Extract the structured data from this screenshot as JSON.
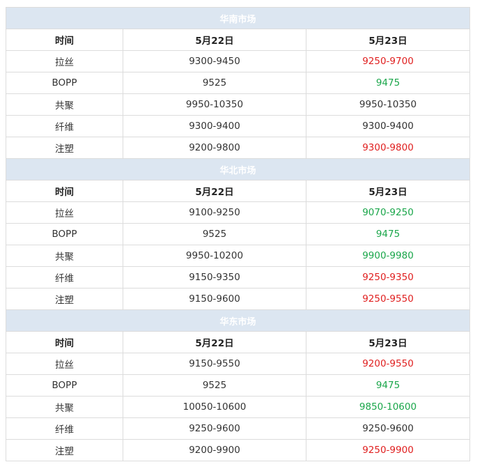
{
  "colors": {
    "up": "#e02020",
    "down": "#1aa64a",
    "section_bg": "#dce6f1"
  },
  "sections": [
    {
      "title": "华南市场",
      "header": [
        "时间",
        "5月22日",
        "5月23日"
      ],
      "rows": [
        {
          "name": "拉丝",
          "d22": "9300-9450",
          "d23": "9250-9700",
          "trend": "up"
        },
        {
          "name": "BOPP",
          "d22": "9525",
          "d23": "9475",
          "trend": "down"
        },
        {
          "name": "共聚",
          "d22": "9950-10350",
          "d23": "9950-10350",
          "trend": "flat"
        },
        {
          "name": "纤维",
          "d22": "9300-9400",
          "d23": "9300-9400",
          "trend": "flat"
        },
        {
          "name": "注塑",
          "d22": "9200-9800",
          "d23": "9300-9800",
          "trend": "up"
        }
      ]
    },
    {
      "title": "华北市场",
      "header": [
        "时间",
        "5月22日",
        "5月23日"
      ],
      "rows": [
        {
          "name": "拉丝",
          "d22": "9100-9250",
          "d23": "9070-9250",
          "trend": "down"
        },
        {
          "name": "BOPP",
          "d22": "9525",
          "d23": "9475",
          "trend": "down"
        },
        {
          "name": "共聚",
          "d22": "9950-10200",
          "d23": "9900-9980",
          "trend": "down"
        },
        {
          "name": "纤维",
          "d22": "9150-9350",
          "d23": "9250-9350",
          "trend": "up"
        },
        {
          "name": "注塑",
          "d22": "9150-9600",
          "d23": "9250-9550",
          "trend": "up"
        }
      ]
    },
    {
      "title": "华东市场",
      "header": [
        "时间",
        "5月22日",
        "5月23日"
      ],
      "rows": [
        {
          "name": "拉丝",
          "d22": "9150-9550",
          "d23": "9200-9550",
          "trend": "up"
        },
        {
          "name": "BOPP",
          "d22": "9525",
          "d23": "9475",
          "trend": "down"
        },
        {
          "name": "共聚",
          "d22": "10050-10600",
          "d23": "9850-10600",
          "trend": "down"
        },
        {
          "name": "纤维",
          "d22": "9250-9600",
          "d23": "9250-9600",
          "trend": "flat"
        },
        {
          "name": "注塑",
          "d22": "9200-9900",
          "d23": "9250-9900",
          "trend": "up"
        }
      ]
    }
  ]
}
